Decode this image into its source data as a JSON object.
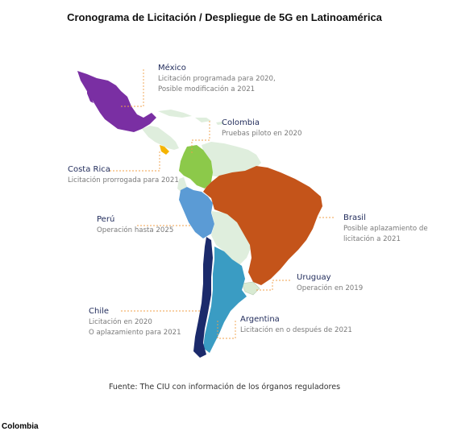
{
  "title": "Cronograma de Licitación / Despliegue de 5G en Latinoamérica",
  "colors": {
    "mexico": "#7a2fa3",
    "colombia": "#8cc94a",
    "peru": "#5b9bd5",
    "brasil": "#c4541a",
    "chile": "#1b2a6b",
    "argentina": "#3a9cc3",
    "costa_rica": "#f5b400",
    "uruguay": "#d8ead2",
    "other": "#dfeedd",
    "leader": "#f0a04b"
  },
  "countries": {
    "mexico": {
      "name": "México",
      "line1": "Licitación programada para 2020,",
      "line2": "Posible modificación a 2021"
    },
    "colombia": {
      "name": "Colombia",
      "line1": "Pruebas piloto en 2020"
    },
    "costa_rica": {
      "name": "Costa Rica",
      "line1": "Licitación prorrogada para 2021"
    },
    "brasil": {
      "name": "Brasil",
      "line1": "Posible aplazamiento de",
      "line2": "licitación a 2021"
    },
    "peru": {
      "name": "Perú",
      "line1": "Operación hasta 2025"
    },
    "uruguay": {
      "name": "Uruguay",
      "line1": "Operación en 2019"
    },
    "chile": {
      "name": "Chile",
      "line1": "Licitación en 2020",
      "line2": "O aplazamiento para 2021"
    },
    "argentina": {
      "name": "Argentina",
      "line1": "Licitación en o después de 2021"
    }
  },
  "source": "Fuente: The CIU con información de los órganos reguladores",
  "footer": "Colombia"
}
